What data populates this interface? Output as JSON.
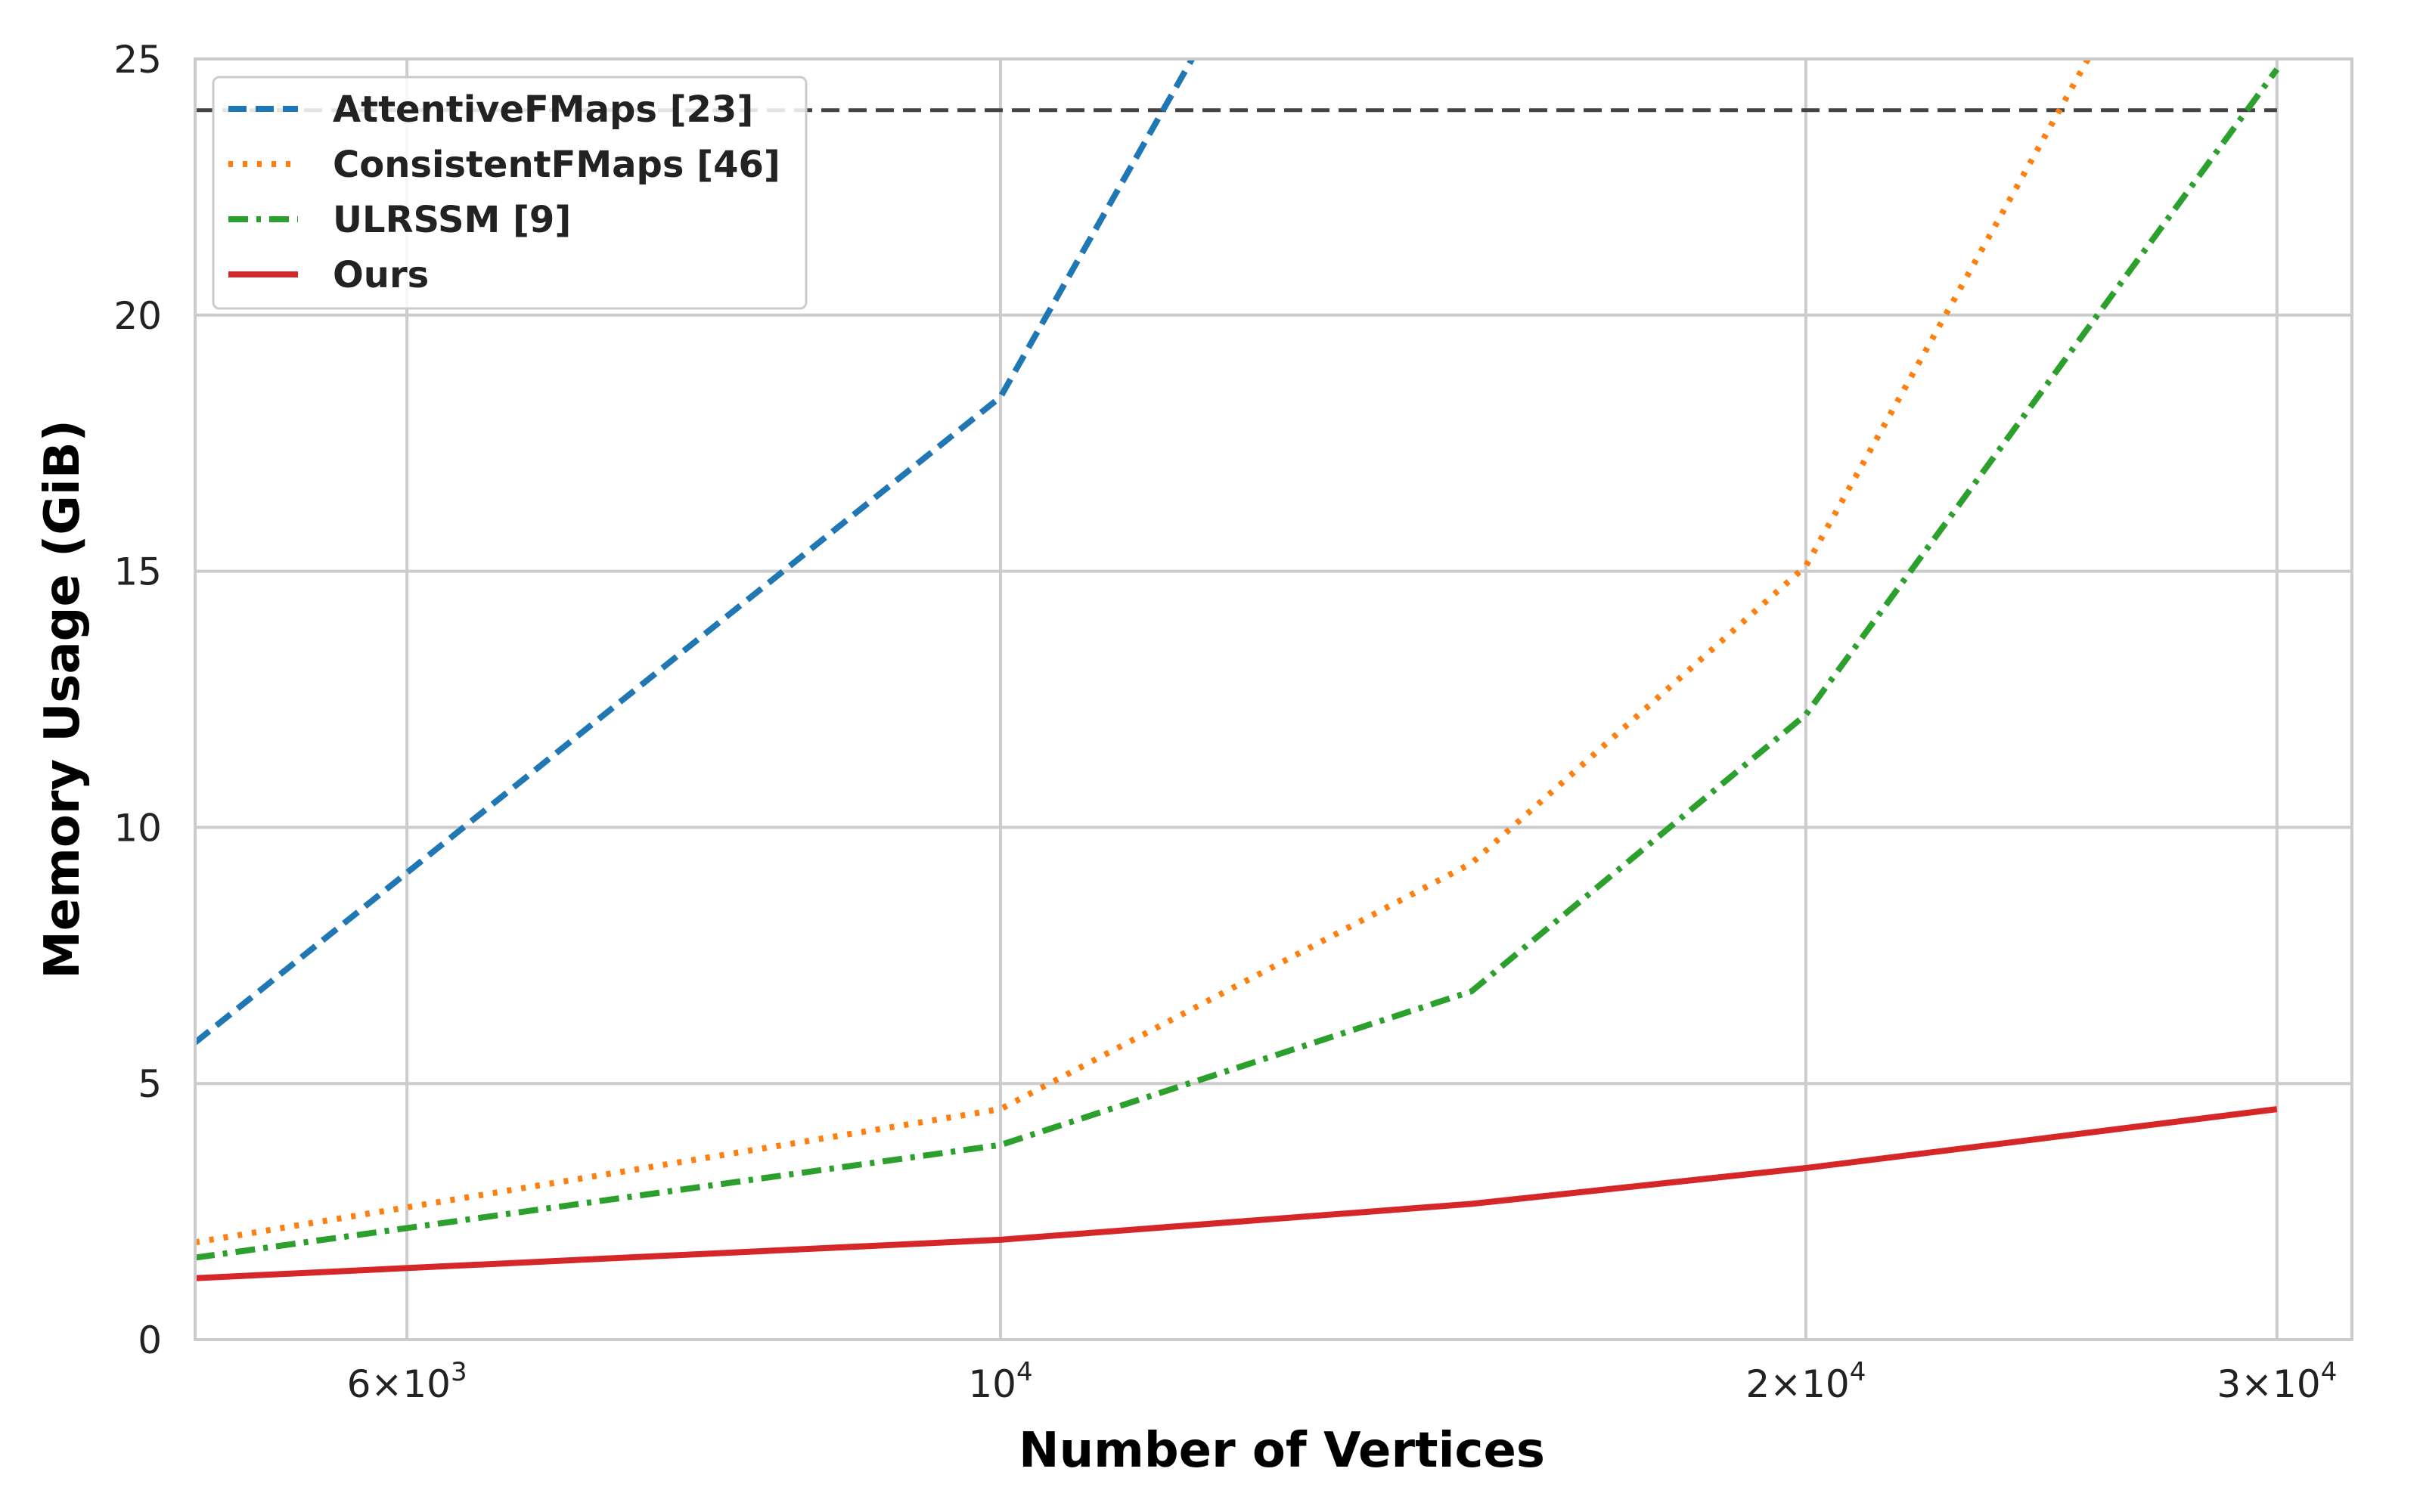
{
  "chart_data": {
    "type": "line",
    "xlabel": "Number of Vertices",
    "ylabel": "Memory Usage (GiB)",
    "xscale": "log",
    "xlim": [
      5000,
      32000
    ],
    "ylim": [
      0,
      25
    ],
    "grid": true,
    "legend_position": "top-left",
    "x_ticks": [
      {
        "value": 6000,
        "mantissa": "6",
        "times": "×",
        "base": "10",
        "exp": "3"
      },
      {
        "value": 10000,
        "mantissa": "",
        "times": "",
        "base": "10",
        "exp": "4"
      },
      {
        "value": 20000,
        "mantissa": "2",
        "times": "×",
        "base": "10",
        "exp": "4"
      },
      {
        "value": 30000,
        "mantissa": "3",
        "times": "×",
        "base": "10",
        "exp": "4"
      }
    ],
    "y_ticks": [
      0,
      5,
      10,
      15,
      20,
      25
    ],
    "reference_line": {
      "y": 24,
      "color": "#444444",
      "style": "dashed"
    },
    "series": [
      {
        "name": "AttentiveFMaps [23]",
        "color": "#1f77b4",
        "style": "dashed",
        "x": [
          5000,
          10000,
          12000
        ],
        "y": [
          5.8,
          18.4,
          25.7
        ]
      },
      {
        "name": "ConsistentFMaps [46]",
        "color": "#ff7f0e",
        "style": "dotted",
        "x": [
          5000,
          10000,
          15000,
          20000,
          26000
        ],
        "y": [
          1.9,
          4.5,
          9.3,
          15.1,
          25.8
        ]
      },
      {
        "name": "ULRSSM [9]",
        "color": "#2ca02c",
        "style": "dashdot",
        "x": [
          5000,
          10000,
          15000,
          20000,
          30000
        ],
        "y": [
          1.6,
          3.8,
          6.8,
          12.2,
          24.8
        ]
      },
      {
        "name": "Ours",
        "color": "#d62728",
        "style": "solid",
        "x": [
          5000,
          10000,
          15000,
          20000,
          30000
        ],
        "y": [
          1.2,
          1.95,
          2.65,
          3.35,
          4.5
        ]
      }
    ]
  }
}
